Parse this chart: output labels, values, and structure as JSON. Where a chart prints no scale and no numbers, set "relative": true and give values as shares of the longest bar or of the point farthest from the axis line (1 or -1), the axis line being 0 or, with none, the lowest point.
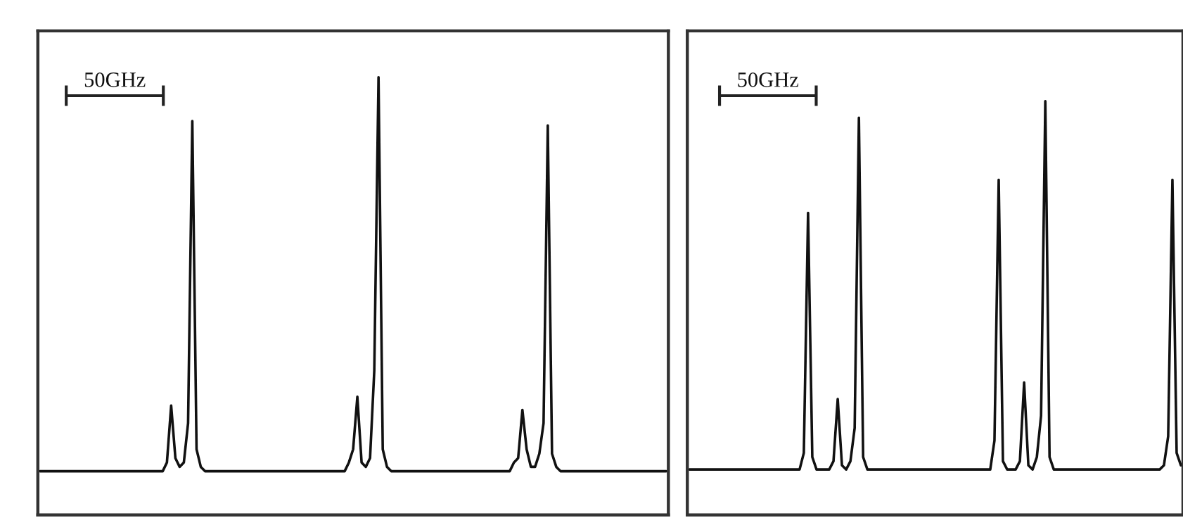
{
  "chart_data": [
    {
      "type": "line",
      "relative": true,
      "tick_labels": false,
      "annotations": [
        "50GHz"
      ],
      "categories": [
        null,
        null,
        null,
        null,
        null,
        null,
        null,
        null,
        null,
        null,
        null,
        null,
        null,
        null,
        null,
        null,
        null,
        null,
        null,
        null,
        null,
        null,
        null,
        null,
        null,
        null,
        null,
        null,
        null,
        null,
        null,
        null,
        null,
        null,
        null,
        null,
        null,
        null,
        null,
        null,
        null,
        null,
        null,
        null,
        null,
        null,
        null,
        null,
        null,
        null,
        null,
        null,
        null,
        null,
        null,
        null,
        null,
        null,
        null,
        null,
        null,
        null,
        null,
        null,
        null,
        null,
        null,
        null,
        null,
        null,
        null,
        null,
        null,
        null,
        null,
        null,
        null,
        null,
        null,
        null,
        null,
        null,
        null,
        null,
        null,
        null,
        null,
        null,
        null,
        null,
        null,
        null,
        null,
        null,
        null,
        null,
        null,
        null,
        null,
        null,
        null,
        null,
        null,
        null,
        null,
        null,
        null,
        null,
        null,
        null,
        null,
        null,
        null,
        null,
        null,
        null,
        null,
        null,
        null,
        null,
        null,
        null,
        null,
        null,
        null,
        null,
        null,
        null,
        null,
        null,
        null,
        null,
        null,
        null,
        null,
        null,
        null,
        null,
        null,
        null,
        null,
        null,
        null,
        null,
        null,
        null,
        null,
        null,
        null
      ],
      "series": [
        {
          "color": "#111111",
          "values": [
            0.1,
            0.1,
            0.1,
            0.1,
            0.1,
            0.1,
            0.1,
            0.1,
            0.1,
            0.1,
            0.1,
            0.1,
            0.1,
            0.1,
            0.1,
            0.1,
            0.1,
            0.1,
            0.1,
            0.1,
            0.1,
            0.1,
            0.1,
            0.1,
            0.1,
            0.1,
            0.1,
            0.1,
            0.1,
            0.1,
            0.12,
            0.25,
            0.13,
            0.11,
            0.12,
            0.21,
            0.9,
            0.15,
            0.11,
            0.1,
            0.1,
            0.1,
            0.1,
            0.1,
            0.1,
            0.1,
            0.1,
            0.1,
            0.1,
            0.1,
            0.1,
            0.1,
            0.1,
            0.1,
            0.1,
            0.1,
            0.1,
            0.1,
            0.1,
            0.1,
            0.1,
            0.1,
            0.1,
            0.1,
            0.1,
            0.1,
            0.1,
            0.1,
            0.1,
            0.1,
            0.1,
            0.1,
            0.1,
            0.12,
            0.15,
            0.27,
            0.12,
            0.11,
            0.13,
            0.33,
            1,
            0.15,
            0.11,
            0.1,
            0.1,
            0.1,
            0.1,
            0.1,
            0.1,
            0.1,
            0.1,
            0.1,
            0.1,
            0.1,
            0.1,
            0.1,
            0.1,
            0.1,
            0.1,
            0.1,
            0.1,
            0.1,
            0.1,
            0.1,
            0.1,
            0.1,
            0.1,
            0.1,
            0.1,
            0.1,
            0.1,
            0.1,
            0.12,
            0.13,
            0.24,
            0.15,
            0.11,
            0.11,
            0.14,
            0.21,
            0.89,
            0.14,
            0.11,
            0.1,
            0.1,
            0.1,
            0.1,
            0.1,
            0.1,
            0.1,
            0.1,
            0.1,
            0.1,
            0.1,
            0.1,
            0.1,
            0.1,
            0.1,
            0.1,
            0.1,
            0.1,
            0.1,
            0.1,
            0.1,
            0.1,
            0.1,
            0.1,
            0.1,
            0.1
          ]
        }
      ]
    },
    {
      "type": "line",
      "relative": true,
      "tick_labels": false,
      "annotations": [
        "50GHz"
      ],
      "categories": [
        null,
        null,
        null,
        null,
        null,
        null,
        null,
        null,
        null,
        null,
        null,
        null,
        null,
        null,
        null,
        null,
        null,
        null,
        null,
        null,
        null,
        null,
        null,
        null,
        null,
        null,
        null,
        null,
        null,
        null,
        null,
        null,
        null,
        null,
        null,
        null,
        null,
        null,
        null,
        null,
        null,
        null,
        null,
        null,
        null,
        null,
        null,
        null,
        null,
        null,
        null,
        null,
        null,
        null,
        null,
        null,
        null,
        null,
        null,
        null,
        null,
        null,
        null,
        null,
        null,
        null,
        null,
        null,
        null,
        null,
        null,
        null,
        null,
        null,
        null,
        null,
        null,
        null,
        null,
        null,
        null,
        null,
        null,
        null,
        null,
        null,
        null,
        null,
        null,
        null,
        null,
        null,
        null,
        null,
        null,
        null,
        null,
        null,
        null,
        null,
        null,
        null,
        null,
        null,
        null,
        null,
        null,
        null,
        null,
        null,
        null,
        null,
        null,
        null,
        null,
        null,
        null
      ],
      "series": [
        {
          "color": "#111111",
          "values": [
            0.11,
            0.11,
            0.11,
            0.11,
            0.11,
            0.11,
            0.11,
            0.11,
            0.11,
            0.11,
            0.11,
            0.11,
            0.11,
            0.11,
            0.11,
            0.11,
            0.11,
            0.11,
            0.11,
            0.11,
            0.11,
            0.11,
            0.11,
            0.11,
            0.11,
            0.11,
            0.11,
            0.15,
            0.73,
            0.14,
            0.11,
            0.11,
            0.11,
            0.11,
            0.13,
            0.28,
            0.12,
            0.11,
            0.13,
            0.21,
            0.96,
            0.14,
            0.11,
            0.11,
            0.11,
            0.11,
            0.11,
            0.11,
            0.11,
            0.11,
            0.11,
            0.11,
            0.11,
            0.11,
            0.11,
            0.11,
            0.11,
            0.11,
            0.11,
            0.11,
            0.11,
            0.11,
            0.11,
            0.11,
            0.11,
            0.11,
            0.11,
            0.11,
            0.11,
            0.11,
            0.11,
            0.11,
            0.18,
            0.81,
            0.13,
            0.11,
            0.11,
            0.11,
            0.13,
            0.32,
            0.12,
            0.11,
            0.14,
            0.24,
            1,
            0.14,
            0.11,
            0.11,
            0.11,
            0.11,
            0.11,
            0.11,
            0.11,
            0.11,
            0.11,
            0.11,
            0.11,
            0.11,
            0.11,
            0.11,
            0.11,
            0.11,
            0.11,
            0.11,
            0.11,
            0.11,
            0.11,
            0.11,
            0.11,
            0.11,
            0.11,
            0.11,
            0.12,
            0.19,
            0.81,
            0.15,
            0.12
          ]
        }
      ]
    }
  ]
}
